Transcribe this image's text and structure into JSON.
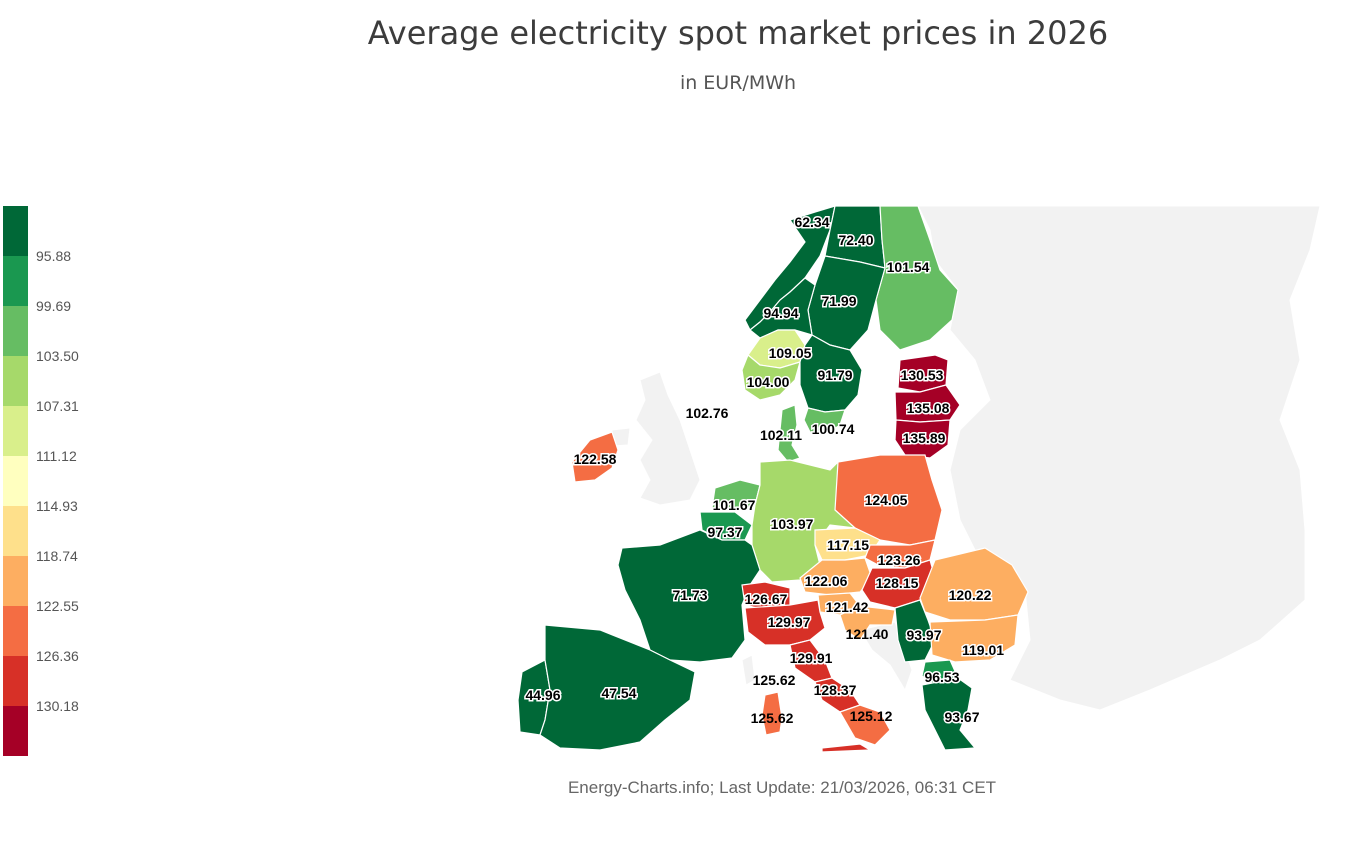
{
  "title": "Average electricity spot market prices in 2026",
  "subtitle": "in EUR/MWh",
  "source": "Energy-Charts.info; Last Update: 21/03/2026, 06:31 CET",
  "legend": {
    "colors": [
      "#006837",
      "#1a9850",
      "#66bd63",
      "#a6d96a",
      "#d9ef8b",
      "#ffffbf",
      "#fee08b",
      "#fdae61",
      "#f46d43",
      "#d73027",
      "#a50026"
    ],
    "thresholds": [
      "95.88",
      "99.69",
      "103.50",
      "107.31",
      "111.12",
      "114.93",
      "118.74",
      "122.55",
      "126.36",
      "130.18"
    ]
  },
  "regions": {
    "no4": {
      "label": "62.34",
      "color": "#006837"
    },
    "se1": {
      "label": "72.40",
      "color": "#006837"
    },
    "fi": {
      "label": "101.54",
      "color": "#66bd63"
    },
    "se2": {
      "label": "71.99",
      "color": "#006837"
    },
    "no3": {
      "label": "94.94",
      "color": "#006837"
    },
    "no1": {
      "label": "109.05",
      "color": "#d9ef8b"
    },
    "no2": {
      "label": "104.00",
      "color": "#a6d96a"
    },
    "se3": {
      "label": "91.79",
      "color": "#006837"
    },
    "ee": {
      "label": "130.53",
      "color": "#a50026"
    },
    "lv": {
      "label": "135.08",
      "color": "#a50026"
    },
    "lt": {
      "label": "135.89",
      "color": "#a50026"
    },
    "gb": {
      "label": "102.76"
    },
    "dk1": {
      "label": "102.11",
      "color": "#66bd63"
    },
    "se4": {
      "label": "100.74",
      "color": "#66bd63"
    },
    "ie": {
      "label": "122.58",
      "color": "#f46d43"
    },
    "pl": {
      "label": "124.05",
      "color": "#f46d43"
    },
    "nl": {
      "label": "101.67",
      "color": "#66bd63"
    },
    "be": {
      "label": "97.37",
      "color": "#1a9850"
    },
    "de": {
      "label": "103.97",
      "color": "#a6d96a"
    },
    "cz": {
      "label": "117.15",
      "color": "#fee08b"
    },
    "sk": {
      "label": "123.26",
      "color": "#f46d43"
    },
    "at": {
      "label": "122.06",
      "color": "#fdae61"
    },
    "hu": {
      "label": "128.15",
      "color": "#d73027"
    },
    "fr": {
      "label": "71.73",
      "color": "#006837"
    },
    "ch": {
      "label": "126.67",
      "color": "#d73027"
    },
    "si": {
      "label": "121.42",
      "color": "#fdae61"
    },
    "ro": {
      "label": "120.22",
      "color": "#fdae61"
    },
    "hr": {
      "label": "121.40",
      "color": "#fdae61"
    },
    "rs": {
      "label": "93.97",
      "color": "#006837"
    },
    "it_north": {
      "label": "129.97",
      "color": "#d73027"
    },
    "bg": {
      "label": "119.01",
      "color": "#fdae61"
    },
    "it_cnor": {
      "label": "129.91",
      "color": "#d73027"
    },
    "mk": {
      "label": "96.53",
      "color": "#1a9850"
    },
    "it_sard": {
      "label": "125.62",
      "color": "#f46d43"
    },
    "it_csud": {
      "label": "128.37",
      "color": "#d73027"
    },
    "pt": {
      "label": "44.96",
      "color": "#006837"
    },
    "es": {
      "label": "47.54",
      "color": "#006837"
    },
    "it_sard2": {
      "label": "125.62"
    },
    "it_sud": {
      "label": "125.12",
      "color": "#f46d43"
    },
    "gr": {
      "label": "93.67",
      "color": "#006837"
    }
  }
}
